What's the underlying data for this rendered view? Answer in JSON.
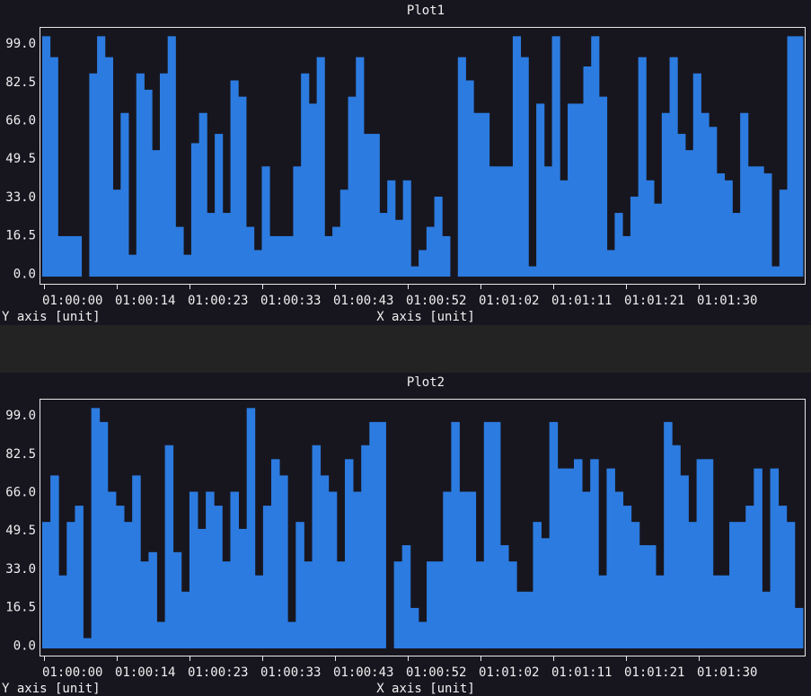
{
  "chart_data": [
    {
      "type": "bar",
      "title": "Plot1",
      "xlabel": "X axis [unit]",
      "ylabel": "Y axis [unit]",
      "ylim": [
        -4.5,
        106
      ],
      "yticks": [
        "99.0",
        "82.5",
        "66.0",
        "49.5",
        "33.0",
        "16.5",
        "0.0"
      ],
      "ytick_values": [
        99.0,
        82.5,
        66.0,
        49.5,
        33.0,
        16.5,
        0.0
      ],
      "xticks": [
        "01:00:00",
        "01:00:14",
        "01:00:23",
        "01:00:33",
        "01:00:43",
        "01:00:52",
        "01:01:02",
        "01:01:11",
        "01:01:21",
        "01:01:30"
      ],
      "xtick_indices": [
        0,
        12,
        24,
        36,
        48,
        60,
        72,
        84,
        96,
        108
      ],
      "grid": false,
      "values": [
        102,
        93,
        16,
        16,
        16,
        -3,
        86,
        102,
        93,
        36,
        69,
        8,
        86,
        79,
        53,
        86,
        102,
        20,
        8,
        56,
        69,
        26,
        60,
        26,
        83,
        76,
        20,
        10,
        46,
        16,
        16,
        16,
        46,
        86,
        73,
        93,
        16,
        20,
        36,
        76,
        93,
        60,
        60,
        26,
        40,
        23,
        40,
        3,
        10,
        20,
        33,
        16,
        -3,
        93,
        83,
        69,
        69,
        46,
        46,
        46,
        102,
        93,
        3,
        73,
        46,
        102,
        40,
        73,
        73,
        89,
        102,
        76,
        10,
        26,
        16,
        33,
        93,
        40,
        30,
        69,
        93,
        60,
        53,
        86,
        69,
        63,
        43,
        40,
        26,
        69,
        46,
        46,
        43,
        3,
        36,
        102,
        102
      ]
    },
    {
      "type": "bar",
      "title": "Plot2",
      "xlabel": "X axis [unit]",
      "ylabel": "Y axis [unit]",
      "ylim": [
        -4.5,
        106
      ],
      "yticks": [
        "99.0",
        "82.5",
        "66.0",
        "49.5",
        "33.0",
        "16.5",
        "0.0"
      ],
      "ytick_values": [
        99.0,
        82.5,
        66.0,
        49.5,
        33.0,
        16.5,
        0.0
      ],
      "xticks": [
        "01:00:00",
        "01:00:14",
        "01:00:23",
        "01:00:33",
        "01:00:43",
        "01:00:52",
        "01:01:02",
        "01:01:11",
        "01:01:21",
        "01:01:30"
      ],
      "xtick_indices": [
        0,
        12,
        24,
        36,
        48,
        60,
        72,
        84,
        96,
        108
      ],
      "grid": false,
      "values": [
        53,
        73,
        30,
        53,
        60,
        3,
        102,
        96,
        66,
        60,
        53,
        73,
        36,
        40,
        10,
        86,
        40,
        23,
        66,
        50,
        66,
        60,
        36,
        66,
        50,
        102,
        30,
        60,
        80,
        73,
        10,
        53,
        36,
        86,
        73,
        66,
        36,
        80,
        66,
        86,
        96,
        96,
        -3,
        36,
        43,
        16,
        10,
        36,
        36,
        66,
        96,
        66,
        66,
        36,
        96,
        96,
        43,
        36,
        23,
        23,
        53,
        46,
        96,
        76,
        76,
        80,
        66,
        80,
        30,
        76,
        66,
        60,
        53,
        43,
        43,
        30,
        96,
        86,
        73,
        53,
        80,
        80,
        30,
        30,
        53,
        53,
        60,
        76,
        23,
        76,
        60,
        53,
        16
      ]
    }
  ]
}
